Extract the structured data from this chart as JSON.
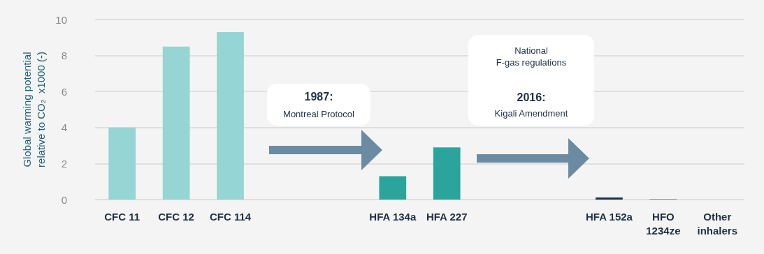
{
  "chart_data": {
    "type": "bar",
    "ylabel": "Global warming potential\nrelative to CO₂  x1000 (-)",
    "categories": [
      "CFC 11",
      "CFC 12",
      "CFC 114",
      null,
      null,
      "HFA 134a",
      "HFA 227",
      null,
      null,
      "HFA 152a",
      "HFO\n1234ze",
      "Other\ninhalers"
    ],
    "values": [
      4.0,
      8.5,
      9.3,
      null,
      null,
      1.3,
      2.9,
      null,
      null,
      0.12,
      0.04,
      null
    ],
    "colors": [
      "#95d5d3",
      "#95d5d3",
      "#95d5d3",
      null,
      null,
      "#2ba59c",
      "#2ba59c",
      null,
      null,
      "#1d3349",
      "#8a96a3",
      null
    ],
    "ylim": [
      0,
      10
    ],
    "yticks": [
      0,
      2,
      4,
      6,
      8,
      10
    ],
    "grid": "y",
    "annotations": [
      "1987:",
      "Montreal Protocol",
      "National\nF-gas regulations",
      "2016:",
      "Kigali Amendment"
    ]
  }
}
